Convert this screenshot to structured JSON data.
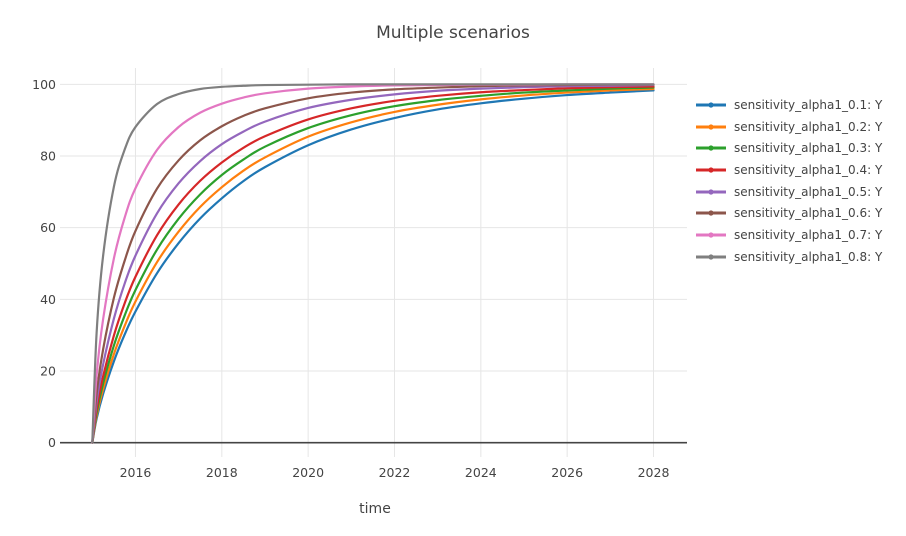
{
  "chart_data": {
    "type": "line",
    "title": "Multiple scenarios",
    "xlabel": "time",
    "ylabel": "",
    "grid": true,
    "legend_position": "right-outside",
    "x_range": [
      2014.25,
      2028.75
    ],
    "y_range": [
      -4,
      104
    ],
    "xticks": [
      2016,
      2018,
      2020,
      2022,
      2024,
      2026,
      2028
    ],
    "yticks": [
      0,
      20,
      40,
      60,
      80,
      100
    ],
    "x": [
      2015,
      2015.1,
      2015.25,
      2015.5,
      2015.75,
      2016,
      2016.5,
      2017,
      2017.5,
      2018,
      2018.5,
      2019,
      2020,
      2021,
      2022,
      2023,
      2024,
      2025,
      2026,
      2027,
      2028
    ],
    "series": [
      {
        "name": "sensitivity_alpha1_0.1: Y",
        "color": "#1f77b4",
        "values": [
          0,
          6.7,
          13.6,
          22.7,
          30.2,
          36.6,
          47.3,
          55.7,
          62.6,
          68.2,
          73.0,
          76.9,
          83.0,
          87.4,
          90.6,
          93.0,
          94.7,
          96.0,
          97.0,
          97.7,
          98.3
        ]
      },
      {
        "name": "sensitivity_alpha1_0.2: Y",
        "color": "#ff7f0e",
        "values": [
          0,
          7.5,
          14.9,
          24.7,
          32.6,
          39.4,
          50.4,
          58.9,
          65.8,
          71.3,
          75.9,
          79.6,
          85.4,
          89.4,
          92.3,
          94.3,
          95.8,
          96.9,
          97.7,
          98.3,
          98.7
        ]
      },
      {
        "name": "sensitivity_alpha1_0.3: Y",
        "color": "#2ca02c",
        "values": [
          0,
          8.3,
          16.5,
          27.1,
          35.5,
          42.6,
          53.9,
          62.5,
          69.3,
          74.7,
          79.0,
          82.6,
          87.8,
          91.4,
          93.9,
          95.6,
          96.8,
          97.7,
          98.3,
          98.8,
          99.1
        ]
      },
      {
        "name": "sensitivity_alpha1_0.4: Y",
        "color": "#d62728",
        "values": [
          0,
          9.4,
          18.5,
          29.9,
          38.9,
          46.3,
          57.9,
          66.5,
          73.1,
          78.2,
          82.3,
          85.5,
          90.2,
          93.3,
          95.4,
          96.8,
          97.8,
          98.4,
          98.9,
          99.2,
          99.4
        ]
      },
      {
        "name": "sensitivity_alpha1_0.5: Y",
        "color": "#9467bd",
        "values": [
          0,
          11.3,
          21.8,
          34.6,
          44.4,
          52.2,
          64.0,
          72.4,
          78.6,
          83.3,
          86.8,
          89.6,
          93.4,
          95.7,
          97.2,
          98.2,
          98.8,
          99.2,
          99.5,
          99.6,
          99.8
        ]
      },
      {
        "name": "sensitivity_alpha1_0.6: Y",
        "color": "#8c564b",
        "values": [
          0,
          13.7,
          26.0,
          40.4,
          50.8,
          59.1,
          70.9,
          78.8,
          84.4,
          88.3,
          91.2,
          93.3,
          96.1,
          97.7,
          98.6,
          99.1,
          99.5,
          99.7,
          99.8,
          99.9,
          99.9
        ]
      },
      {
        "name": "sensitivity_alpha1_0.7: Y",
        "color": "#e377c2",
        "values": [
          0,
          18.8,
          34.4,
          51.4,
          62.8,
          71.0,
          81.7,
          88.1,
          92.1,
          94.6,
          96.3,
          97.5,
          98.8,
          99.4,
          99.7,
          99.8,
          99.9,
          99.9,
          100,
          100,
          100
        ]
      },
      {
        "name": "sensitivity_alpha1_0.8: Y",
        "color": "#7f7f7f",
        "values": [
          0,
          30.7,
          52.1,
          71.4,
          81.8,
          88.1,
          94.5,
          97.3,
          98.7,
          99.3,
          99.6,
          99.8,
          99.9,
          100,
          100,
          100,
          100,
          100,
          100,
          100,
          100
        ]
      }
    ]
  },
  "style": {
    "background": "#ffffff",
    "grid_color": "#e6e6e6",
    "zero_line_color": "#444444",
    "text_color": "#444444"
  }
}
